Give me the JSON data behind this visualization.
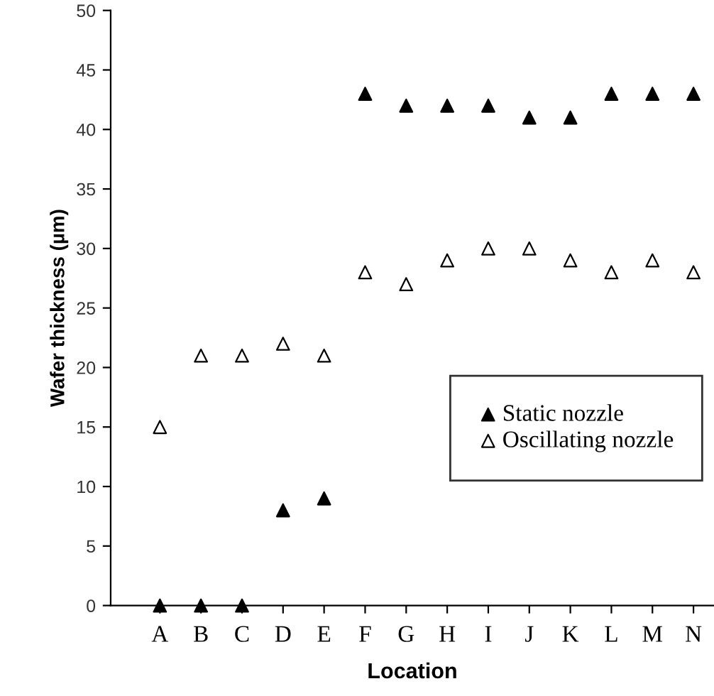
{
  "chart_data": {
    "type": "scatter",
    "xlabel": "Location",
    "ylabel": "Wafer thickness (µm)",
    "categories": [
      "A",
      "B",
      "C",
      "D",
      "E",
      "F",
      "G",
      "H",
      "I",
      "J",
      "K",
      "L",
      "M",
      "N"
    ],
    "series": [
      {
        "name": "Static nozzle",
        "color": "#000000",
        "values": [
          0,
          0,
          0,
          8,
          9,
          43,
          42,
          42,
          42,
          41,
          41,
          43,
          43,
          43
        ]
      },
      {
        "name": "Oscillating nozzle",
        "color": "#000000",
        "values": [
          15,
          21,
          21,
          22,
          21,
          28,
          27,
          29,
          30,
          30,
          29,
          28,
          29,
          28
        ]
      }
    ],
    "ylim": [
      0,
      50
    ],
    "yticks": [
      0,
      5,
      10,
      15,
      20,
      25,
      30,
      35,
      40,
      45,
      50
    ],
    "marker": "triangle",
    "legend": "bottom right",
    "grid": false
  }
}
